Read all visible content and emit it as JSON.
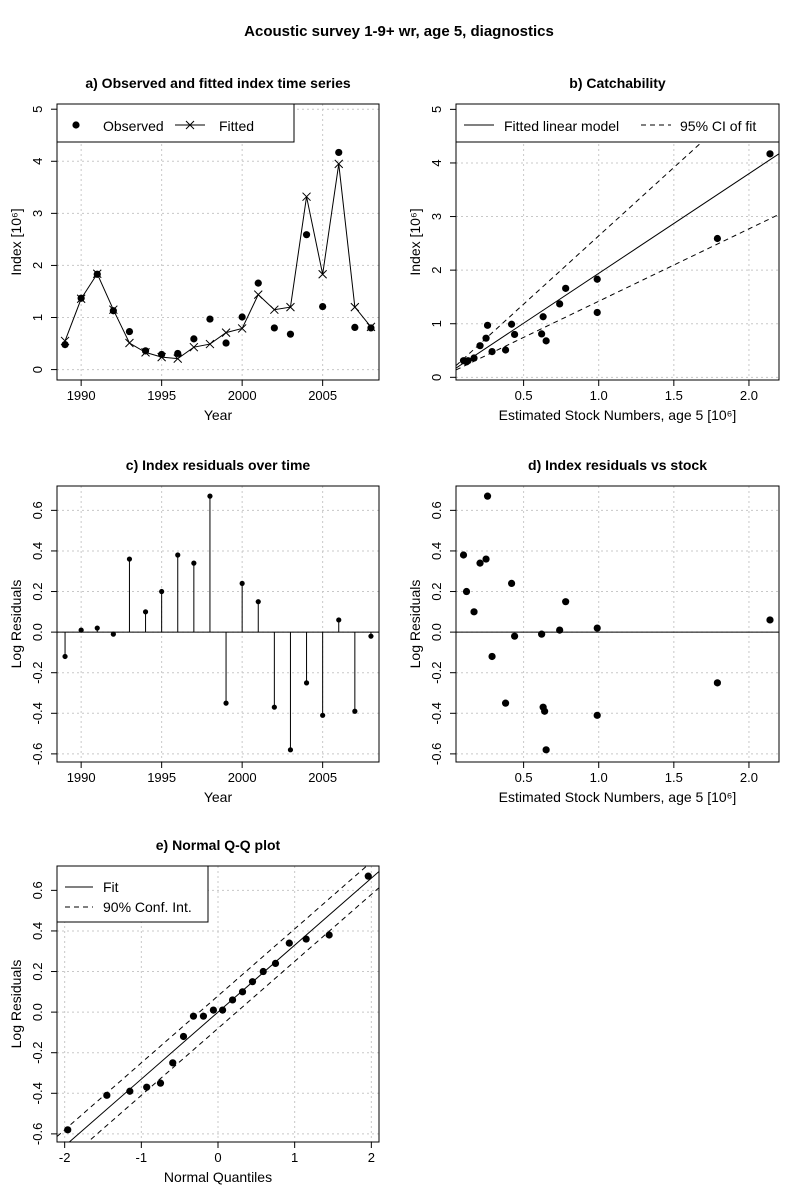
{
  "figure_title": "Acoustic survey 1-9+ wr, age 5, diagnostics",
  "chart_data": [
    {
      "id": "a",
      "type": "line",
      "title": "a) Observed and fitted index time series",
      "xlabel": "Year",
      "ylabel": "Index [10⁶]",
      "xlim": [
        1988.5,
        2008.5
      ],
      "ylim": [
        -0.2,
        5.1
      ],
      "xticks": [
        1990,
        1995,
        2000,
        2005
      ],
      "yticks": [
        0,
        1,
        2,
        3,
        4,
        5
      ],
      "grid": true,
      "legend": {
        "position": "top-left",
        "entries": [
          "Observed",
          "Fitted"
        ]
      },
      "x": [
        1989,
        1990,
        1991,
        1992,
        1993,
        1994,
        1995,
        1996,
        1997,
        1998,
        1999,
        2000,
        2001,
        2002,
        2003,
        2004,
        2005,
        2006,
        2007,
        2008
      ],
      "series": [
        {
          "name": "Observed",
          "values": [
            0.48,
            1.37,
            1.83,
            1.13,
            0.73,
            0.36,
            0.29,
            0.31,
            0.59,
            0.97,
            0.51,
            1.01,
            1.66,
            0.8,
            0.68,
            2.59,
            1.21,
            4.17,
            0.81,
            0.8
          ]
        },
        {
          "name": "Fitted",
          "values": [
            0.55,
            1.36,
            1.84,
            1.15,
            0.51,
            0.33,
            0.24,
            0.21,
            0.43,
            0.49,
            0.71,
            0.79,
            1.44,
            1.15,
            1.2,
            3.32,
            1.83,
            3.95,
            1.2,
            0.82
          ]
        }
      ]
    },
    {
      "id": "b",
      "type": "scatter",
      "title": "b) Catchability",
      "xlabel": "Estimated Stock Numbers, age 5 [10⁶]",
      "ylabel": "Index [10⁶]",
      "xlim": [
        0.05,
        2.2
      ],
      "ylim": [
        -0.05,
        5.1
      ],
      "xticks": [
        0.5,
        1.0,
        1.5,
        2.0
      ],
      "xticklabels": [
        "0.5",
        "1.0",
        "1.5",
        "2.0"
      ],
      "yticks": [
        0,
        1,
        2,
        3,
        4,
        5
      ],
      "grid": true,
      "legend": {
        "position": "top",
        "entries": [
          "Fitted linear model",
          "95% CI of fit"
        ]
      },
      "x": [
        0.1,
        0.12,
        0.17,
        0.21,
        0.25,
        0.26,
        0.29,
        0.38,
        0.42,
        0.44,
        0.62,
        0.63,
        0.65,
        0.74,
        0.78,
        0.99,
        0.99,
        1.79,
        2.14,
        0.13
      ],
      "y": [
        0.31,
        0.29,
        0.36,
        0.59,
        0.73,
        0.97,
        0.48,
        0.51,
        0.99,
        0.8,
        0.81,
        1.13,
        0.68,
        1.37,
        1.66,
        1.83,
        1.21,
        2.59,
        4.17,
        0.31
      ],
      "fit": {
        "slope": 1.86,
        "intercept": 0.08
      },
      "ci_lower": {
        "slope": 1.35,
        "intercept": 0.07
      },
      "ci_upper": {
        "slope": 2.55,
        "intercept": 0.09
      }
    },
    {
      "id": "c",
      "type": "bar",
      "title": "c) Index residuals over time",
      "xlabel": "Year",
      "ylabel": "Log Residuals",
      "xlim": [
        1988.5,
        2008.5
      ],
      "ylim": [
        -0.64,
        0.72
      ],
      "xticks": [
        1990,
        1995,
        2000,
        2005
      ],
      "yticks": [
        -0.6,
        -0.4,
        -0.2,
        0.0,
        0.2,
        0.4,
        0.6
      ],
      "yticklabels": [
        "-0.6",
        "-0.4",
        "-0.2",
        "0.0",
        "0.2",
        "0.4",
        "0.6"
      ],
      "grid": true,
      "x": [
        1989,
        1990,
        1991,
        1992,
        1993,
        1994,
        1995,
        1996,
        1997,
        1998,
        1999,
        2000,
        2001,
        2002,
        2003,
        2004,
        2005,
        2006,
        2007,
        2008
      ],
      "values": [
        -0.12,
        0.01,
        0.02,
        -0.01,
        0.36,
        0.1,
        0.2,
        0.38,
        0.34,
        0.67,
        -0.35,
        0.24,
        0.15,
        -0.37,
        -0.58,
        -0.25,
        -0.41,
        0.06,
        -0.39,
        -0.02
      ]
    },
    {
      "id": "d",
      "type": "scatter",
      "title": "d) Index residuals vs stock",
      "xlabel": "Estimated Stock Numbers, age 5 [10⁶]",
      "ylabel": "Log Residuals",
      "xlim": [
        0.05,
        2.2
      ],
      "ylim": [
        -0.64,
        0.72
      ],
      "xticks": [
        0.5,
        1.0,
        1.5,
        2.0
      ],
      "xticklabels": [
        "0.5",
        "1.0",
        "1.5",
        "2.0"
      ],
      "yticks": [
        -0.6,
        -0.4,
        -0.2,
        0.0,
        0.2,
        0.4,
        0.6
      ],
      "yticklabels": [
        "-0.6",
        "-0.4",
        "-0.2",
        "0.0",
        "0.2",
        "0.4",
        "0.6"
      ],
      "grid": true,
      "x": [
        0.1,
        0.12,
        0.17,
        0.21,
        0.25,
        0.26,
        0.29,
        0.38,
        0.42,
        0.44,
        0.62,
        0.63,
        0.65,
        0.74,
        0.78,
        0.99,
        0.99,
        1.79,
        2.14,
        0.64
      ],
      "y": [
        0.38,
        0.2,
        0.1,
        0.34,
        0.36,
        0.67,
        -0.12,
        -0.35,
        0.24,
        -0.02,
        -0.01,
        -0.37,
        -0.58,
        0.01,
        0.15,
        0.02,
        -0.41,
        -0.25,
        0.06,
        -0.39
      ]
    },
    {
      "id": "e",
      "type": "scatter",
      "title": "e) Normal Q-Q plot",
      "xlabel": "Normal Quantiles",
      "ylabel": "Log Residuals",
      "xlim": [
        -2.1,
        2.1
      ],
      "ylim": [
        -0.64,
        0.72
      ],
      "xticks": [
        -2,
        -1,
        0,
        1,
        2
      ],
      "yticks": [
        -0.6,
        -0.4,
        -0.2,
        0.0,
        0.2,
        0.4,
        0.6
      ],
      "yticklabels": [
        "-0.6",
        "-0.4",
        "-0.2",
        "0.0",
        "0.2",
        "0.4",
        "0.6"
      ],
      "grid": true,
      "legend": {
        "position": "top-left",
        "entries": [
          "Fit",
          "90% Conf. Int."
        ]
      },
      "x": [
        -1.96,
        -1.45,
        -1.15,
        -0.93,
        -0.75,
        -0.59,
        -0.45,
        -0.32,
        -0.19,
        -0.06,
        0.06,
        0.19,
        0.32,
        0.45,
        0.59,
        0.75,
        0.93,
        1.15,
        1.45,
        1.96
      ],
      "y": [
        -0.58,
        -0.41,
        -0.39,
        -0.37,
        -0.35,
        -0.25,
        -0.12,
        -0.02,
        -0.02,
        0.01,
        0.01,
        0.06,
        0.1,
        0.15,
        0.2,
        0.24,
        0.34,
        0.36,
        0.38,
        0.67
      ],
      "fit": {
        "slope": 0.33,
        "intercept": 0.0
      },
      "ci_offset": 0.08
    }
  ]
}
